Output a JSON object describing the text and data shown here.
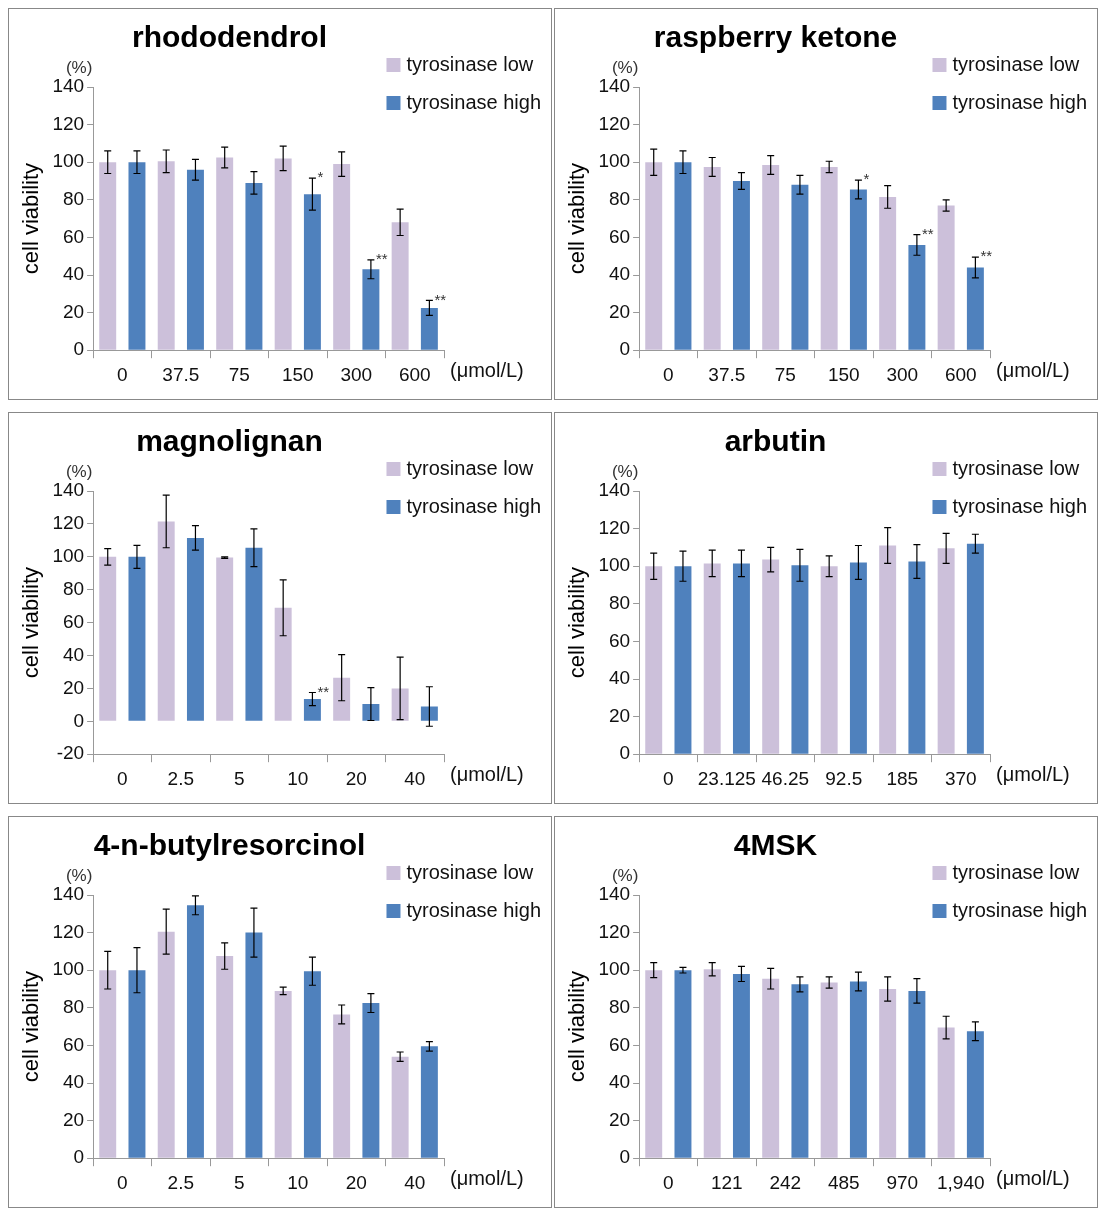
{
  "chart_data": [
    {
      "type": "bar",
      "title": "rhododendrol",
      "xlabel": "(μmol/L)",
      "ylabel": "cell viability",
      "categories": [
        "0",
        "37.5",
        "75",
        "150",
        "300",
        "600"
      ],
      "ylim": [
        0,
        140
      ],
      "yticks": [
        0,
        20,
        40,
        60,
        80,
        100,
        120,
        140
      ],
      "grid": false,
      "legend": "top right",
      "series": [
        {
          "name": "tyrosinase low",
          "color": "#ccc0da",
          "values": [
            100,
            100.5,
            102.5,
            102,
            99,
            68
          ],
          "errors": [
            6,
            6,
            5.5,
            6.5,
            6.5,
            7
          ]
        },
        {
          "name": "tyrosinase high",
          "color": "#4f81bd",
          "values": [
            100,
            96,
            89,
            83,
            43,
            22.5
          ],
          "errors": [
            6,
            5.5,
            6,
            8.5,
            5,
            4
          ],
          "value_labels": [
            null,
            null,
            null,
            "*",
            "**",
            "**"
          ]
        }
      ],
      "annotations": [
        "(%)"
      ]
    },
    {
      "type": "bar",
      "title": "raspberry ketone",
      "xlabel": "(μmol/L)",
      "ylabel": "cell viability",
      "categories": [
        "0",
        "37.5",
        "75",
        "150",
        "300",
        "600"
      ],
      "ylim": [
        0,
        140
      ],
      "yticks": [
        0,
        20,
        40,
        60,
        80,
        100,
        120,
        140
      ],
      "grid": false,
      "legend": "top right",
      "series": [
        {
          "name": "tyrosinase low",
          "color": "#ccc0da",
          "values": [
            100,
            97.5,
            98.5,
            97.5,
            81.5,
            77
          ],
          "errors": [
            7,
            5,
            5,
            3,
            6,
            3
          ]
        },
        {
          "name": "tyrosinase high",
          "color": "#4f81bd",
          "values": [
            100,
            90,
            88,
            85.5,
            56,
            44
          ],
          "errors": [
            6,
            4.5,
            5,
            5,
            5.5,
            5.5
          ],
          "value_labels": [
            null,
            null,
            null,
            "*",
            "**",
            "**"
          ]
        }
      ],
      "annotations": [
        "(%)"
      ]
    },
    {
      "type": "bar",
      "title": "magnolignan",
      "xlabel": "(μmol/L)",
      "ylabel": "cell viability",
      "categories": [
        "0",
        "2.5",
        "5",
        "10",
        "20",
        "40"
      ],
      "ylim": [
        -20,
        140
      ],
      "yticks": [
        -20,
        0,
        20,
        40,
        60,
        80,
        100,
        120,
        140
      ],
      "grid": false,
      "legend": "top right",
      "series": [
        {
          "name": "tyrosinase low",
          "color": "#ccc0da",
          "values": [
            100,
            121.5,
            99.5,
            69,
            26.5,
            20
          ],
          "errors": [
            5,
            16,
            0.5,
            17,
            14,
            19
          ]
        },
        {
          "name": "tyrosinase high",
          "color": "#4f81bd",
          "values": [
            100,
            111.5,
            105.5,
            13.5,
            10.5,
            9
          ],
          "errors": [
            7,
            7.5,
            11.5,
            4,
            10,
            12
          ],
          "value_labels": [
            null,
            null,
            null,
            "**",
            null,
            null
          ]
        }
      ],
      "annotations": [
        "(%)"
      ]
    },
    {
      "type": "bar",
      "title": "arbutin",
      "xlabel": "(μmol/L)",
      "ylabel": "cell viability",
      "categories": [
        "0",
        "23.125",
        "46.25",
        "92.5",
        "185",
        "370"
      ],
      "ylim": [
        0,
        140
      ],
      "yticks": [
        0,
        20,
        40,
        60,
        80,
        100,
        120,
        140
      ],
      "grid": false,
      "legend": "top right",
      "series": [
        {
          "name": "tyrosinase low",
          "color": "#ccc0da",
          "values": [
            100,
            101.5,
            103.5,
            100,
            111,
            109.5
          ],
          "errors": [
            7,
            7,
            6.5,
            5.5,
            9.5,
            8
          ]
        },
        {
          "name": "tyrosinase high",
          "color": "#4f81bd",
          "values": [
            100,
            101.5,
            100.5,
            102,
            102.5,
            112
          ],
          "errors": [
            8,
            7,
            8.5,
            9,
            9,
            5
          ]
        }
      ],
      "annotations": [
        "(%)"
      ]
    },
    {
      "type": "bar",
      "title": "4-n-butylresorcinol",
      "xlabel": "(μmol/L)",
      "ylabel": "cell viability",
      "categories": [
        "0",
        "2.5",
        "5",
        "10",
        "20",
        "40"
      ],
      "ylim": [
        0,
        140
      ],
      "yticks": [
        0,
        20,
        40,
        60,
        80,
        100,
        120,
        140
      ],
      "grid": false,
      "legend": "top right",
      "series": [
        {
          "name": "tyrosinase low",
          "color": "#ccc0da",
          "values": [
            100,
            120.5,
            107.5,
            89,
            76.5,
            54
          ],
          "errors": [
            10,
            12,
            7,
            2,
            5,
            2.5
          ]
        },
        {
          "name": "tyrosinase high",
          "color": "#4f81bd",
          "values": [
            100,
            134.5,
            120,
            99.5,
            82.5,
            59.5
          ],
          "errors": [
            12,
            5,
            13,
            7.5,
            5,
            2.5
          ]
        }
      ],
      "annotations": [
        "(%)"
      ]
    },
    {
      "type": "bar",
      "title": "4MSK",
      "xlabel": "(μmol/L)",
      "ylabel": "cell viability",
      "categories": [
        "0",
        "121",
        "242",
        "485",
        "970",
        "1,940"
      ],
      "ylim": [
        0,
        140
      ],
      "yticks": [
        0,
        20,
        40,
        60,
        80,
        100,
        120,
        140
      ],
      "grid": false,
      "legend": "top right",
      "series": [
        {
          "name": "tyrosinase low",
          "color": "#ccc0da",
          "values": [
            100,
            100.5,
            95.5,
            93.5,
            90,
            69.5
          ],
          "errors": [
            4,
            3.5,
            5.5,
            3,
            6.5,
            6
          ]
        },
        {
          "name": "tyrosinase high",
          "color": "#4f81bd",
          "values": [
            100,
            98,
            92.5,
            94,
            89,
            67.5
          ],
          "errors": [
            1.5,
            4,
            4,
            5,
            6.5,
            5
          ]
        }
      ],
      "annotations": [
        "(%)"
      ]
    }
  ]
}
